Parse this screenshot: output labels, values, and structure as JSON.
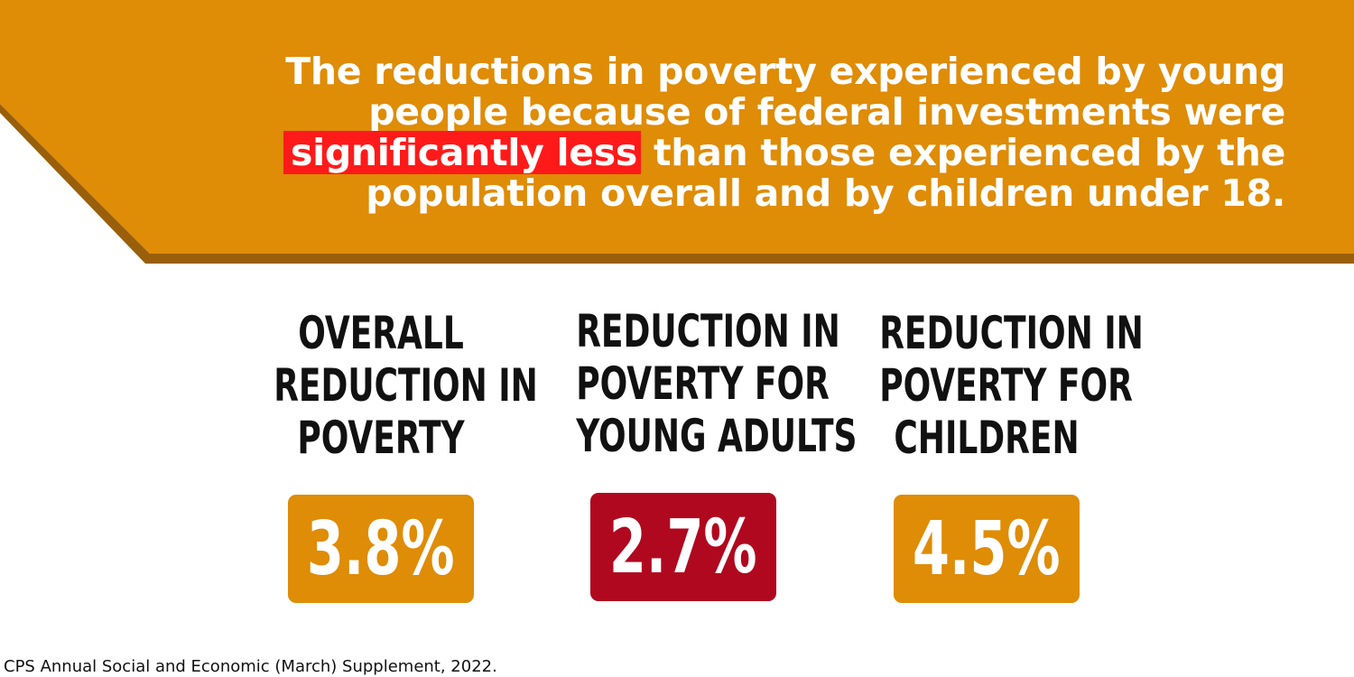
{
  "colors": {
    "banner": "#df8c06",
    "banner_shadow": "#9a5f0a",
    "highlight": "#ff1a1a",
    "text_light": "#ffffff",
    "text_dark": "#111111",
    "accent_dark_red": "#b0081f"
  },
  "headline": {
    "lead": "The reductions in poverty experienced by young people because of federal investments were",
    "highlight": "significantly less",
    "tail": "than those experienced by the population overall and by children under 18."
  },
  "stats": [
    {
      "label_lines": [
        "OVERALL",
        "REDUCTION IN",
        "POVERTY"
      ],
      "value": "3.8%",
      "color": "#df8c06"
    },
    {
      "label_lines": [
        "REDUCTION IN",
        "POVERTY FOR",
        "YOUNG ADULTS"
      ],
      "value": "2.7%",
      "color": "#b0081f"
    },
    {
      "label_lines": [
        "REDUCTION IN",
        "POVERTY FOR",
        "CHILDREN"
      ],
      "value": "4.5%",
      "color": "#df8c06"
    }
  ],
  "source": "CPS Annual Social and Economic (March) Supplement, 2022."
}
